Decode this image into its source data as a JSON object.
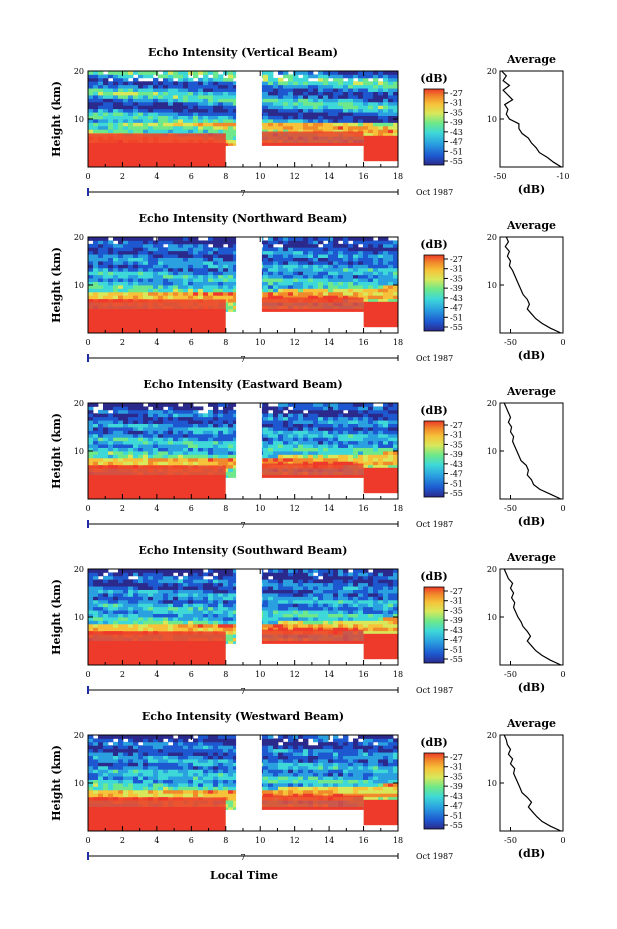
{
  "chart_data": [
    {
      "type": "heatmap",
      "title": "Echo Intensity (Vertical Beam)",
      "ylabel": "Height (km)",
      "x_ticks": [
        "0",
        "2",
        "4",
        "6",
        "8",
        "10",
        "12",
        "14",
        "16",
        "18"
      ],
      "y_ticks": [
        "20",
        "10"
      ],
      "date_label": "Oct 1987",
      "date_tick": "7",
      "xlim": [
        0,
        18
      ],
      "ylim": [
        0,
        20
      ],
      "colorbar": {
        "label": "(dB)",
        "ticks": [
          "-27",
          "-31",
          "-35",
          "-39",
          "-43",
          "-47",
          "-51",
          "-55"
        ]
      },
      "data_gaps": [
        [
          8.5,
          10
        ],
        [
          8,
          10
        ],
        [
          16,
          18
        ]
      ],
      "strong_echo_top_km": {
        "0-8": 6,
        "10-16": 6.5
      },
      "profile": {
        "title": "Average",
        "xlabel": "(dB)",
        "x_ticks": [
          "-50",
          "-10"
        ],
        "xlim": [
          -50,
          -10
        ],
        "y_ticks": [
          "20",
          "10"
        ],
        "points": [
          [
            20,
            -49
          ],
          [
            19,
            -46
          ],
          [
            18,
            -48
          ],
          [
            17,
            -44
          ],
          [
            16,
            -48
          ],
          [
            15,
            -45
          ],
          [
            14,
            -42
          ],
          [
            13,
            -47
          ],
          [
            12,
            -45
          ],
          [
            11,
            -46
          ],
          [
            10,
            -44
          ],
          [
            9,
            -38
          ],
          [
            8,
            -38
          ],
          [
            7,
            -36
          ],
          [
            6,
            -32
          ],
          [
            5,
            -30
          ],
          [
            4,
            -27
          ],
          [
            3,
            -25
          ],
          [
            2,
            -20
          ],
          [
            1,
            -16
          ],
          [
            0,
            -11
          ]
        ]
      }
    },
    {
      "type": "heatmap",
      "title": "Echo Intensity (Northward Beam)",
      "ylabel": "Height (km)",
      "x_ticks": [
        "0",
        "2",
        "4",
        "6",
        "8",
        "10",
        "12",
        "14",
        "16",
        "18"
      ],
      "y_ticks": [
        "20",
        "10"
      ],
      "date_label": "Oct 1987",
      "date_tick": "7",
      "xlim": [
        0,
        18
      ],
      "ylim": [
        0,
        20
      ],
      "colorbar": {
        "label": "(dB)",
        "ticks": [
          "-27",
          "-31",
          "-35",
          "-39",
          "-43",
          "-47",
          "-51",
          "-55"
        ]
      },
      "profile": {
        "title": "Average",
        "xlabel": "(dB)",
        "x_ticks": [
          "-50",
          "0"
        ],
        "xlim": [
          -60,
          0
        ],
        "y_ticks": [
          "20",
          "10"
        ],
        "points": [
          [
            20,
            -54
          ],
          [
            19,
            -52
          ],
          [
            18,
            -55
          ],
          [
            17,
            -51
          ],
          [
            16,
            -53
          ],
          [
            15,
            -50
          ],
          [
            14,
            -51
          ],
          [
            13,
            -48
          ],
          [
            12,
            -46
          ],
          [
            11,
            -44
          ],
          [
            10,
            -42
          ],
          [
            9,
            -40
          ],
          [
            8,
            -38
          ],
          [
            7,
            -34
          ],
          [
            6,
            -32
          ],
          [
            5,
            -34
          ],
          [
            4,
            -30
          ],
          [
            3,
            -26
          ],
          [
            2,
            -20
          ],
          [
            1,
            -12
          ],
          [
            0,
            -2
          ]
        ]
      }
    },
    {
      "type": "heatmap",
      "title": "Echo Intensity (Eastward Beam)",
      "ylabel": "Height (km)",
      "x_ticks": [
        "0",
        "2",
        "4",
        "6",
        "8",
        "10",
        "12",
        "14",
        "16",
        "18"
      ],
      "y_ticks": [
        "20",
        "10"
      ],
      "date_label": "Oct 1987",
      "date_tick": "7",
      "xlim": [
        0,
        18
      ],
      "ylim": [
        0,
        20
      ],
      "colorbar": {
        "label": "(dB)",
        "ticks": [
          "-27",
          "-31",
          "-35",
          "-39",
          "-43",
          "-47",
          "-51",
          "-55"
        ]
      },
      "profile": {
        "title": "Average",
        "xlabel": "(dB)",
        "x_ticks": [
          "-50",
          "0"
        ],
        "xlim": [
          -60,
          0
        ],
        "y_ticks": [
          "20",
          "10"
        ],
        "points": [
          [
            20,
            -56
          ],
          [
            19,
            -54
          ],
          [
            18,
            -52
          ],
          [
            17,
            -50
          ],
          [
            16,
            -52
          ],
          [
            15,
            -49
          ],
          [
            14,
            -50
          ],
          [
            13,
            -47
          ],
          [
            12,
            -48
          ],
          [
            11,
            -46
          ],
          [
            10,
            -44
          ],
          [
            9,
            -42
          ],
          [
            8,
            -40
          ],
          [
            7,
            -35
          ],
          [
            6,
            -33
          ],
          [
            5,
            -34
          ],
          [
            4,
            -30
          ],
          [
            3,
            -28
          ],
          [
            2,
            -22
          ],
          [
            1,
            -12
          ],
          [
            0,
            -2
          ]
        ]
      }
    },
    {
      "type": "heatmap",
      "title": "Echo Intensity (Southward Beam)",
      "ylabel": "Height (km)",
      "x_ticks": [
        "0",
        "2",
        "4",
        "6",
        "8",
        "10",
        "12",
        "14",
        "16",
        "18"
      ],
      "y_ticks": [
        "20",
        "10"
      ],
      "date_label": "Oct 1987",
      "date_tick": "7",
      "xlim": [
        0,
        18
      ],
      "ylim": [
        0,
        20
      ],
      "colorbar": {
        "label": "(dB)",
        "ticks": [
          "-27",
          "-31",
          "-35",
          "-39",
          "-43",
          "-47",
          "-51",
          "-55"
        ]
      },
      "profile": {
        "title": "Average",
        "xlabel": "(dB)",
        "x_ticks": [
          "-50",
          "0"
        ],
        "xlim": [
          -60,
          0
        ],
        "y_ticks": [
          "20",
          "10"
        ],
        "points": [
          [
            20,
            -56
          ],
          [
            19,
            -54
          ],
          [
            18,
            -52
          ],
          [
            17,
            -48
          ],
          [
            16,
            -50
          ],
          [
            15,
            -47
          ],
          [
            14,
            -49
          ],
          [
            13,
            -46
          ],
          [
            12,
            -47
          ],
          [
            11,
            -45
          ],
          [
            10,
            -43
          ],
          [
            9,
            -40
          ],
          [
            8,
            -38
          ],
          [
            7,
            -34
          ],
          [
            6,
            -31
          ],
          [
            5,
            -34
          ],
          [
            4,
            -30
          ],
          [
            3,
            -26
          ],
          [
            2,
            -20
          ],
          [
            1,
            -12
          ],
          [
            0,
            -2
          ]
        ]
      }
    },
    {
      "type": "heatmap",
      "title": "Echo Intensity (Westward Beam)",
      "ylabel": "Height (km)",
      "xlabel": "Local Time",
      "x_ticks": [
        "0",
        "2",
        "4",
        "6",
        "8",
        "10",
        "12",
        "14",
        "16",
        "18"
      ],
      "y_ticks": [
        "20",
        "10"
      ],
      "date_label": "Oct 1987",
      "date_tick": "7",
      "xlim": [
        0,
        18
      ],
      "ylim": [
        0,
        20
      ],
      "colorbar": {
        "label": "(dB)",
        "ticks": [
          "-27",
          "-31",
          "-35",
          "-39",
          "-43",
          "-47",
          "-51",
          "-55"
        ]
      },
      "profile": {
        "title": "Average",
        "xlabel": "(dB)",
        "x_ticks": [
          "-50",
          "0"
        ],
        "xlim": [
          -60,
          0
        ],
        "y_ticks": [
          "20",
          "10"
        ],
        "points": [
          [
            20,
            -56
          ],
          [
            19,
            -54
          ],
          [
            18,
            -53
          ],
          [
            17,
            -50
          ],
          [
            16,
            -52
          ],
          [
            15,
            -48
          ],
          [
            14,
            -50
          ],
          [
            13,
            -46
          ],
          [
            12,
            -47
          ],
          [
            11,
            -45
          ],
          [
            10,
            -43
          ],
          [
            9,
            -41
          ],
          [
            8,
            -39
          ],
          [
            7,
            -34
          ],
          [
            6,
            -30
          ],
          [
            5,
            -33
          ],
          [
            4,
            -29
          ],
          [
            3,
            -25
          ],
          [
            2,
            -20
          ],
          [
            1,
            -12
          ],
          [
            0,
            -2
          ]
        ]
      }
    }
  ],
  "colors": {
    "colormap": [
      "#2b2a8c",
      "#1e58d0",
      "#2aa0e0",
      "#3ed8d8",
      "#6ee88a",
      "#d8e85a",
      "#f6c23a",
      "#f08a2a",
      "#ee3a2a"
    ],
    "strong_echo": "#ee3a2a",
    "line": "#000000",
    "date_marker": "#1f2aa6"
  }
}
